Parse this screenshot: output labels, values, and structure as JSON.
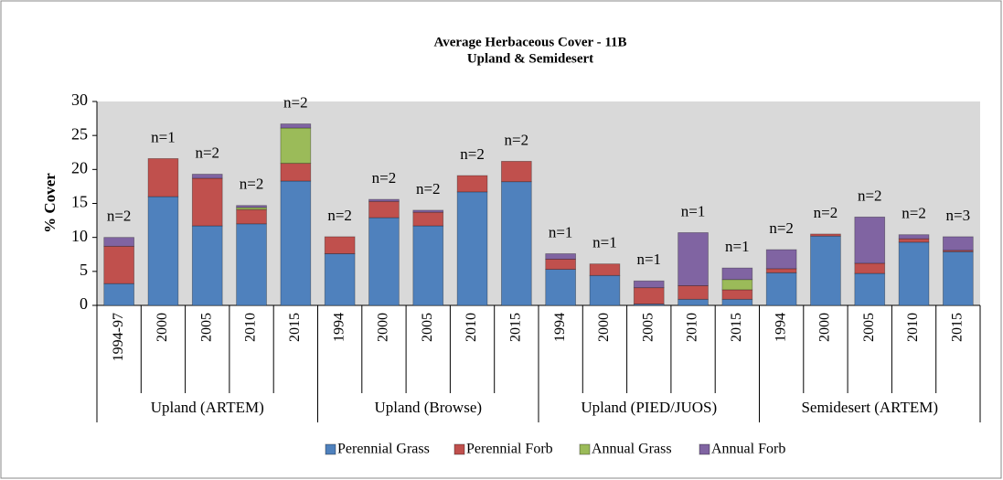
{
  "chart_data": {
    "type": "stacked_bar",
    "title": "Average Herbaceous Cover - 11B",
    "subtitle": "Upland & Semidesert",
    "y_label": "% Cover",
    "groups": [
      {
        "label": "Upland (ARTEM)",
        "categories": [
          "1994-97",
          "2000",
          "2005",
          "2010",
          "2015"
        ]
      },
      {
        "label": "Upland (Browse)",
        "categories": [
          "1994",
          "2000",
          "2005",
          "2010",
          "2015"
        ]
      },
      {
        "label": "Upland (PIED/JUOS)",
        "categories": [
          "1994",
          "2000",
          "2005",
          "2010",
          "2015"
        ]
      },
      {
        "label": "Semidesert (ARTEM)",
        "categories": [
          "1994",
          "2000",
          "2005",
          "2010",
          "2015"
        ]
      }
    ],
    "series": [
      {
        "name": "Perennial Grass",
        "color": "#4f81bd",
        "values": [
          3.2,
          16,
          11.7,
          12,
          18.3,
          7.6,
          12.9,
          11.7,
          16.7,
          18.2,
          5.3,
          4.4,
          0.2,
          0.9,
          0.9,
          4.8,
          10.2,
          4.7,
          9.3,
          7.9
        ]
      },
      {
        "name": "Perennial Forb",
        "color": "#c0504d",
        "values": [
          5.5,
          5.6,
          7.0,
          2.1,
          2.6,
          2.5,
          2.4,
          2.0,
          2.4,
          3.0,
          1.5,
          1.7,
          2.4,
          2.0,
          1.4,
          0.6,
          0.3,
          1.5,
          0.5,
          0.2
        ]
      },
      {
        "name": "Annual Grass",
        "color": "#9bbb59",
        "values": [
          0,
          0,
          0,
          0.3,
          5.2,
          0,
          0,
          0,
          0,
          0,
          0,
          0,
          0,
          0,
          1.5,
          0,
          0,
          0,
          0,
          0
        ]
      },
      {
        "name": "Annual Forb",
        "color": "#8064a2",
        "values": [
          1.3,
          0,
          0.6,
          0.3,
          0.6,
          0,
          0.3,
          0.3,
          0,
          0,
          0.8,
          0,
          1.0,
          7.8,
          1.7,
          2.8,
          0,
          6.8,
          0.6,
          2.0
        ]
      }
    ],
    "annotations": [
      "n=2",
      "n=1",
      "n=2",
      "n=2",
      "n=2",
      "n=2",
      "n=2",
      "n=2",
      "n=2",
      "n=2",
      "n=1",
      "n=1",
      "n=1",
      "n=1",
      "n=1",
      "n=2",
      "n=2",
      "n=2",
      "n=2",
      "n=3"
    ],
    "ylim": [
      0,
      30
    ],
    "yticks": [
      0,
      5,
      10,
      15,
      20,
      25,
      30
    ],
    "grid": false,
    "legend": "bottom"
  }
}
